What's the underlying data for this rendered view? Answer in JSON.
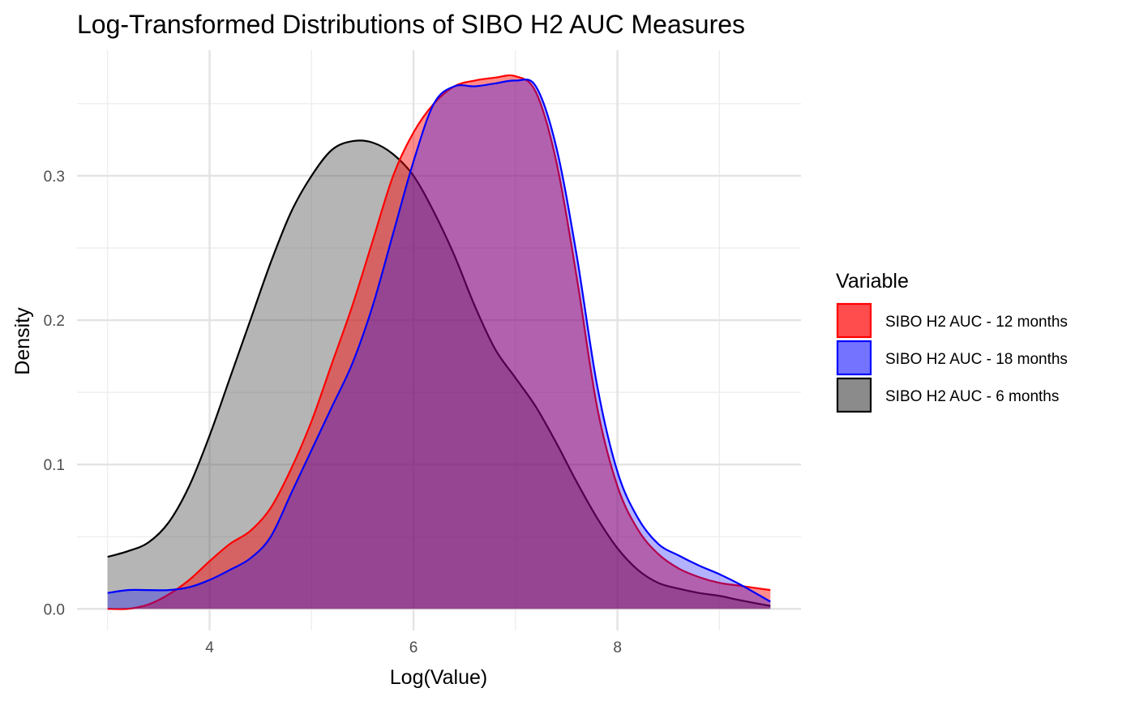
{
  "chart_data": {
    "type": "area",
    "title": "Log-Transformed Distributions of SIBO H2 AUC Measures",
    "xlabel": "Log(Value)",
    "ylabel": "Density",
    "xlim": [
      2.7,
      9.8
    ],
    "ylim": [
      -0.015,
      0.387
    ],
    "x_ticks": [
      4,
      6,
      8
    ],
    "x_tick_labels": [
      "4",
      "6",
      "8"
    ],
    "y_ticks": [
      0.0,
      0.1,
      0.2,
      0.3
    ],
    "y_tick_labels": [
      "0.0",
      "0.1",
      "0.2",
      "0.3"
    ],
    "grid": true,
    "legend": {
      "title": "Variable",
      "position": "right"
    },
    "series": [
      {
        "name": "SIBO H2 AUC - 6 months",
        "draw_order": 0,
        "fill": "#5a5a5a",
        "fill_opacity": 0.45,
        "stroke": "#000000",
        "x": [
          3.0,
          3.2,
          3.4,
          3.6,
          3.8,
          4.0,
          4.2,
          4.4,
          4.6,
          4.8,
          5.0,
          5.2,
          5.4,
          5.6,
          5.8,
          6.0,
          6.2,
          6.4,
          6.6,
          6.8,
          7.0,
          7.2,
          7.4,
          7.6,
          7.8,
          8.0,
          8.2,
          8.4,
          8.6,
          8.8,
          9.0,
          9.2,
          9.5
        ],
        "y": [
          0.036,
          0.04,
          0.046,
          0.06,
          0.085,
          0.12,
          0.16,
          0.2,
          0.24,
          0.275,
          0.3,
          0.318,
          0.324,
          0.323,
          0.315,
          0.3,
          0.275,
          0.245,
          0.21,
          0.18,
          0.16,
          0.14,
          0.115,
          0.088,
          0.063,
          0.042,
          0.027,
          0.018,
          0.014,
          0.011,
          0.009,
          0.006,
          0.002
        ]
      },
      {
        "name": "SIBO H2 AUC - 12 months",
        "draw_order": 1,
        "fill": "#ff0000",
        "fill_opacity": 0.45,
        "stroke": "#ff0000",
        "x": [
          3.0,
          3.2,
          3.4,
          3.6,
          3.8,
          4.0,
          4.2,
          4.4,
          4.6,
          4.8,
          5.0,
          5.2,
          5.4,
          5.6,
          5.8,
          6.0,
          6.2,
          6.4,
          6.6,
          6.8,
          7.0,
          7.2,
          7.4,
          7.6,
          7.8,
          8.0,
          8.2,
          8.4,
          8.6,
          8.8,
          9.0,
          9.2,
          9.5
        ],
        "y": [
          0.0,
          0.0,
          0.003,
          0.01,
          0.02,
          0.033,
          0.045,
          0.054,
          0.07,
          0.097,
          0.13,
          0.17,
          0.21,
          0.255,
          0.3,
          0.33,
          0.35,
          0.362,
          0.366,
          0.368,
          0.369,
          0.358,
          0.31,
          0.23,
          0.14,
          0.085,
          0.055,
          0.038,
          0.028,
          0.022,
          0.018,
          0.016,
          0.013
        ]
      },
      {
        "name": "SIBO H2 AUC - 18 months",
        "draw_order": 2,
        "fill": "#0000ff",
        "fill_opacity": 0.3,
        "stroke": "#0000ff",
        "x": [
          3.0,
          3.2,
          3.4,
          3.6,
          3.8,
          4.0,
          4.2,
          4.4,
          4.6,
          4.8,
          5.0,
          5.2,
          5.4,
          5.6,
          5.8,
          6.0,
          6.2,
          6.4,
          6.6,
          6.8,
          7.0,
          7.2,
          7.4,
          7.6,
          7.8,
          8.0,
          8.2,
          8.4,
          8.6,
          8.8,
          9.0,
          9.2,
          9.5
        ],
        "y": [
          0.011,
          0.013,
          0.013,
          0.013,
          0.015,
          0.02,
          0.027,
          0.035,
          0.05,
          0.08,
          0.11,
          0.14,
          0.17,
          0.21,
          0.26,
          0.31,
          0.35,
          0.362,
          0.362,
          0.364,
          0.366,
          0.362,
          0.32,
          0.245,
          0.155,
          0.095,
          0.063,
          0.045,
          0.037,
          0.03,
          0.024,
          0.017,
          0.005
        ]
      }
    ]
  }
}
